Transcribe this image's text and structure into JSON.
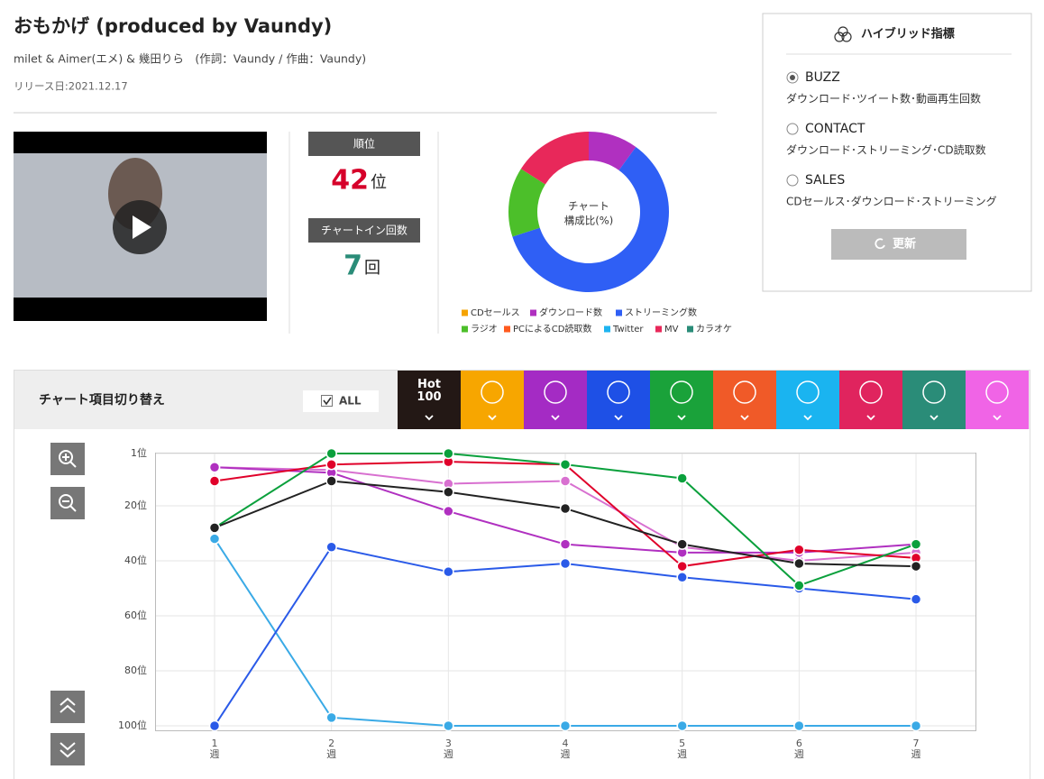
{
  "header": {
    "title": "おもかげ (produced by Vaundy)",
    "artist": "milet & Aimer(エメ) & 幾田りら　(作詞：Vaundy / 作曲：Vaundy)",
    "release": "リリース日:2021.12.17"
  },
  "rank": {
    "label": "順位",
    "value": 42,
    "unit": "位"
  },
  "chart_in": {
    "label": "チャートイン回数",
    "value": 7,
    "unit": "回"
  },
  "hybrid": {
    "title": "ハイブリッド指標",
    "options": [
      {
        "name": "BUZZ",
        "description": "ダウンロード･ツイート数･動画再生回数",
        "selected": true
      },
      {
        "name": "CONTACT",
        "description": "ダウンロード･ストリーミング･CD読取数",
        "selected": false
      },
      {
        "name": "SALES",
        "description": "CDセールス･ダウンロード･ストリーミング",
        "selected": false
      }
    ],
    "button": "更新"
  },
  "chart_switch": {
    "title": "チャート項目切り替え",
    "all": {
      "label": "ALL",
      "checked": true
    },
    "tabs": [
      {
        "label": "Hot\n100",
        "color": "#231815"
      },
      {
        "color": "#f7a600"
      },
      {
        "color": "#a42bc4"
      },
      {
        "color": "#1e50e6"
      },
      {
        "color": "#1aa23a"
      },
      {
        "color": "#f05a28"
      },
      {
        "color": "#1ab4f0"
      },
      {
        "color": "#e0245e"
      },
      {
        "color": "#2a8c78"
      },
      {
        "color": "#f064e6"
      }
    ]
  },
  "chart_data": [
    {
      "type": "donut",
      "center_label": [
        "チャート",
        "構成比(%)"
      ],
      "categories": [
        "CDセールス",
        "ダウンロード数",
        "ストリーミング数",
        "ラジオ",
        "PCによるCD読取数",
        "Twitter",
        "MV",
        "カラオケ"
      ],
      "colors": [
        "#f5a300",
        "#b030c0",
        "#2f5ff5",
        "#4cbf2a",
        "#ff5a1e",
        "#1eb4f0",
        "#e8285a",
        "#2a8c78"
      ],
      "values": [
        0,
        10,
        60,
        14,
        0,
        0,
        16,
        0
      ]
    },
    {
      "type": "line",
      "categories": [
        "1\n週",
        "2\n週",
        "3\n週",
        "4\n週",
        "5\n週",
        "6\n週",
        "7\n週"
      ],
      "series": [
        {
          "color": "#3aaae6",
          "values": [
            32,
            97,
            100,
            100,
            100,
            100,
            100
          ]
        },
        {
          "color": "#2a5ae8",
          "values": [
            100,
            35,
            44,
            41,
            46,
            50,
            54
          ]
        },
        {
          "color": "#d870d0",
          "values": [
            6,
            7,
            12,
            11,
            35,
            40,
            37
          ]
        },
        {
          "color": "#b030c0",
          "values": [
            6,
            8,
            22,
            34,
            37,
            37,
            34
          ]
        },
        {
          "color": "#e0002a",
          "values": [
            11,
            5,
            4,
            5,
            42,
            36,
            39
          ]
        },
        {
          "color": "#0aa03c",
          "values": [
            28,
            1,
            1,
            5,
            10,
            49,
            34
          ]
        },
        {
          "color": "#222222",
          "values": [
            28,
            11,
            15,
            21,
            34,
            41,
            42
          ]
        }
      ],
      "ylim": [
        1,
        100
      ],
      "inverted": true,
      "yticks": [
        {
          "value": 1,
          "label": "1位"
        },
        {
          "value": 20,
          "label": "20位"
        },
        {
          "value": 40,
          "label": "40位"
        },
        {
          "value": 60,
          "label": "60位"
        },
        {
          "value": 80,
          "label": "80位"
        },
        {
          "value": 100,
          "label": "100位"
        }
      ],
      "grid": true
    }
  ]
}
